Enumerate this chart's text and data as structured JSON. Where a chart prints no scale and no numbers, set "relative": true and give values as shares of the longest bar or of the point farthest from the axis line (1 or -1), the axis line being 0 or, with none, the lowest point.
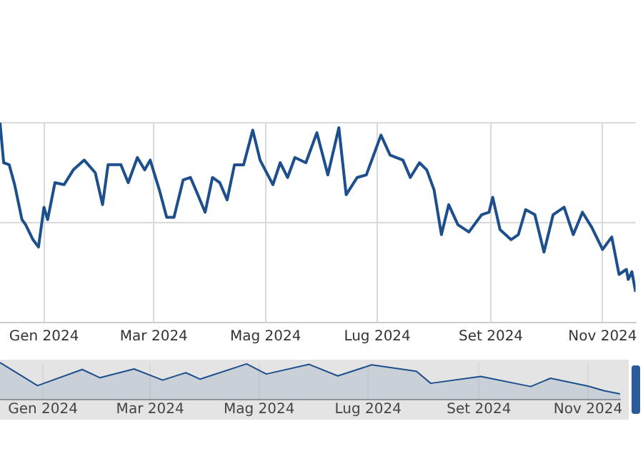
{
  "chart_data": [
    {
      "type": "line",
      "relative": true,
      "color": "#1c4f8c",
      "grid": true,
      "tick_labels": "x",
      "legend": false,
      "marker": "none",
      "xlim": [
        "2023-12-08",
        "2024-11-19"
      ],
      "xticks": [
        {
          "value": "2024-01-01",
          "label": "Gen 2024"
        },
        {
          "value": "2024-03-01",
          "label": "Mar 2024"
        },
        {
          "value": "2024-05-01",
          "label": "Mag 2024"
        },
        {
          "value": "2024-07-01",
          "label": "Lug 2024"
        },
        {
          "value": "2024-09-01",
          "label": "Set 2024"
        },
        {
          "value": "2024-11-01",
          "label": "Nov 2024"
        }
      ],
      "x": [
        "2023-12-08",
        "2023-12-10",
        "2023-12-13",
        "2023-12-16",
        "2023-12-20",
        "2023-12-22",
        "2023-12-26",
        "2023-12-29",
        "2024-01-01",
        "2024-01-03",
        "2024-01-07",
        "2024-01-12",
        "2024-01-17",
        "2024-01-23",
        "2024-01-29",
        "2024-02-02",
        "2024-02-05",
        "2024-02-12",
        "2024-02-16",
        "2024-02-21",
        "2024-02-25",
        "2024-02-28",
        "2024-03-04",
        "2024-03-08",
        "2024-03-12",
        "2024-03-17",
        "2024-03-21",
        "2024-03-25",
        "2024-03-29",
        "2024-04-02",
        "2024-04-06",
        "2024-04-10",
        "2024-04-14",
        "2024-04-19",
        "2024-04-24",
        "2024-04-28",
        "2024-05-05",
        "2024-05-09",
        "2024-05-13",
        "2024-05-17",
        "2024-05-23",
        "2024-05-29",
        "2024-06-04",
        "2024-06-10",
        "2024-06-14",
        "2024-06-20",
        "2024-06-25",
        "2024-07-03",
        "2024-07-08",
        "2024-07-15",
        "2024-07-19",
        "2024-07-24",
        "2024-07-28",
        "2024-08-01",
        "2024-08-05",
        "2024-08-09",
        "2024-08-14",
        "2024-08-20",
        "2024-08-27",
        "2024-08-31",
        "2024-09-02",
        "2024-09-06",
        "2024-09-12",
        "2024-09-16",
        "2024-09-20",
        "2024-09-25",
        "2024-09-30",
        "2024-10-05",
        "2024-10-11",
        "2024-10-16",
        "2024-10-21",
        "2024-10-26",
        "2024-11-01",
        "2024-11-06",
        "2024-11-10",
        "2024-11-14",
        "2024-11-15",
        "2024-11-17",
        "2024-11-19"
      ],
      "values": [
        1.0,
        0.8,
        0.79,
        0.69,
        0.515,
        0.49,
        0.415,
        0.378,
        0.577,
        0.515,
        0.7,
        0.69,
        0.764,
        0.813,
        0.75,
        0.59,
        0.79,
        0.79,
        0.7,
        0.826,
        0.764,
        0.813,
        0.664,
        0.527,
        0.527,
        0.714,
        0.726,
        0.64,
        0.552,
        0.726,
        0.7,
        0.614,
        0.789,
        0.789,
        0.963,
        0.813,
        0.69,
        0.8,
        0.726,
        0.826,
        0.8,
        0.95,
        0.739,
        0.975,
        0.64,
        0.726,
        0.739,
        0.938,
        0.838,
        0.813,
        0.726,
        0.8,
        0.764,
        0.664,
        0.44,
        0.59,
        0.49,
        0.453,
        0.54,
        0.552,
        0.627,
        0.465,
        0.415,
        0.44,
        0.565,
        0.54,
        0.353,
        0.54,
        0.577,
        0.44,
        0.552,
        0.478,
        0.366,
        0.428,
        0.241,
        0.266,
        0.216,
        0.254,
        0.154
      ]
    },
    {
      "type": "area",
      "relative": true,
      "color": "#1c4f8c",
      "grid": "x",
      "legend": false,
      "marker": "none",
      "xlim": [
        "2023-12-08",
        "2024-11-19"
      ],
      "xticks": [
        {
          "value": "2024-01-01",
          "label": "Gen 2024"
        },
        {
          "value": "2024-03-01",
          "label": "Mar 2024"
        },
        {
          "value": "2024-05-01",
          "label": "Mag 2024"
        },
        {
          "value": "2024-07-01",
          "label": "Lug 2024"
        },
        {
          "value": "2024-09-01",
          "label": "Set 2024"
        },
        {
          "value": "2024-11-01",
          "label": "Nov 2024"
        }
      ],
      "x": [
        "2023-12-08",
        "2023-12-29",
        "2024-01-23",
        "2024-02-02",
        "2024-02-21",
        "2024-03-08",
        "2024-03-21",
        "2024-03-29",
        "2024-04-24",
        "2024-05-05",
        "2024-05-29",
        "2024-06-14",
        "2024-07-03",
        "2024-07-28",
        "2024-08-05",
        "2024-09-02",
        "2024-09-30",
        "2024-10-11",
        "2024-11-01",
        "2024-11-10",
        "2024-11-19"
      ],
      "values": [
        1.0,
        0.378,
        0.813,
        0.59,
        0.826,
        0.527,
        0.726,
        0.552,
        0.963,
        0.69,
        0.95,
        0.64,
        0.938,
        0.764,
        0.44,
        0.627,
        0.353,
        0.577,
        0.366,
        0.241,
        0.154
      ]
    }
  ]
}
